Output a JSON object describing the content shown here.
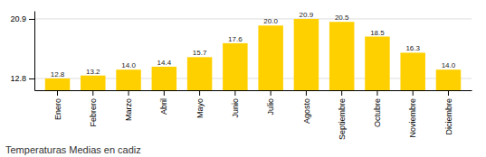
{
  "chart_data": {
    "type": "bar",
    "title": "Temperaturas Medias en cadiz",
    "categories": [
      "Enero",
      "Febrero",
      "Marzo",
      "Abril",
      "Mayo",
      "Junio",
      "Julio",
      "Agosto",
      "Septiembre",
      "Octubre",
      "Noviembre",
      "Diciembre"
    ],
    "values": [
      12.8,
      13.2,
      14.0,
      14.4,
      15.7,
      17.6,
      20.0,
      20.9,
      20.5,
      18.5,
      16.3,
      14.0
    ],
    "value_labels": [
      "12.8",
      "13.2",
      "14.0",
      "14.4",
      "15.7",
      "17.6",
      "20.0",
      "20.9",
      "20.5",
      "18.5",
      "16.3",
      "14.0"
    ],
    "color": "#FFD000",
    "ylim": [
      11.2,
      22.0
    ],
    "yticks": [
      12.8,
      20.9
    ],
    "grid": true,
    "data_labels": true
  }
}
